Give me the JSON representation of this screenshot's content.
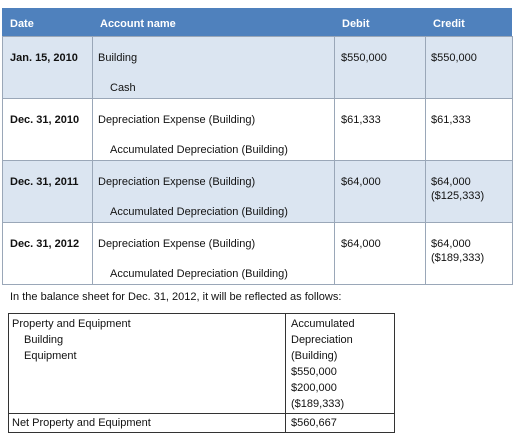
{
  "journal": {
    "header": [
      "Date",
      "Account name",
      "Debit",
      "Credit"
    ],
    "entries": [
      {
        "date": "Jan. 15, 2010",
        "debit_account": "Building",
        "credit_account": "Cash",
        "debit": "$550,000",
        "credit": [
          "$550,000"
        ]
      },
      {
        "date": "Dec. 31, 2010",
        "debit_account": "Depreciation Expense (Building)",
        "credit_account": "Accumulated Depreciation (Building)",
        "debit": "$61,333",
        "credit": [
          "$61,333"
        ]
      },
      {
        "date": "Dec. 31, 2011",
        "debit_account": "Depreciation Expense (Building)",
        "credit_account": "Accumulated Depreciation (Building)",
        "debit": "$64,000",
        "credit": [
          "$64,000",
          "($125,333)"
        ]
      },
      {
        "date": "Dec. 31, 2012",
        "debit_account": "Depreciation Expense (Building)",
        "credit_account": "Accumulated Depreciation (Building)",
        "debit": "$64,000",
        "credit": [
          "$64,000",
          "($189,333)"
        ]
      }
    ]
  },
  "note": "In the balance sheet for Dec. 31, 2012,  it will be reflected as follows:",
  "balance_sheet": {
    "left": [
      "Property and Equipment",
      "Building",
      "Equipment"
    ],
    "right": [
      "Accumulated",
      "Depreciation",
      "(Building)",
      "$550,000",
      "$200,000",
      "($189,333)"
    ],
    "total": [
      "Net Property and Equipment",
      "$560,667"
    ]
  }
}
